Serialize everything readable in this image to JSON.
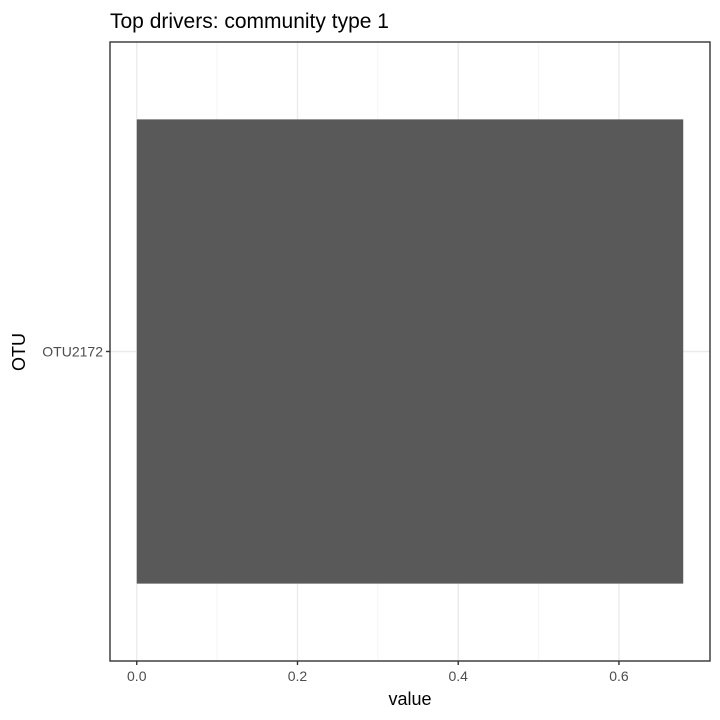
{
  "chart_data": {
    "type": "bar",
    "orientation": "horizontal",
    "title": "Top drivers: community type 1",
    "xlabel": "value",
    "ylabel": "OTU",
    "categories": [
      "OTU2172"
    ],
    "values": [
      0.68
    ],
    "xlim": [
      -0.0333,
      0.7133
    ],
    "x_ticks": [
      "0.0",
      "0.2",
      "0.4",
      "0.6"
    ],
    "x_tick_values": [
      0,
      0.2,
      0.4,
      0.6
    ],
    "grid": true,
    "colors": {
      "bar": "#595959",
      "grid_major": "#ebebeb",
      "grid_minor": "#f5f5f5",
      "panel_border": "#333333"
    }
  }
}
